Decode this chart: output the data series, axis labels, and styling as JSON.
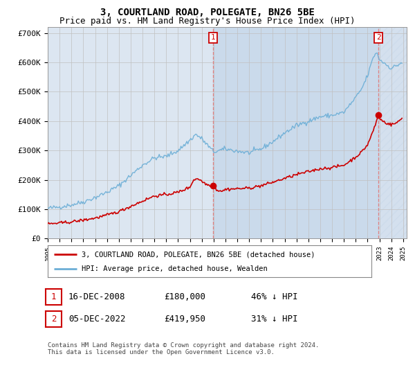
{
  "title": "3, COURTLAND ROAD, POLEGATE, BN26 5BE",
  "subtitle": "Price paid vs. HM Land Registry's House Price Index (HPI)",
  "ylim": [
    0,
    720000
  ],
  "yticks": [
    0,
    100000,
    200000,
    300000,
    400000,
    500000,
    600000,
    700000
  ],
  "ytick_labels": [
    "£0",
    "£100K",
    "£200K",
    "£300K",
    "£400K",
    "£500K",
    "£600K",
    "£700K"
  ],
  "xlim_left": 1995,
  "xlim_right": 2025.3,
  "purchase1_date": 2008.96,
  "purchase1_price": 180000,
  "purchase2_date": 2022.92,
  "purchase2_price": 419950,
  "legend1": "3, COURTLAND ROAD, POLEGATE, BN26 5BE (detached house)",
  "legend2": "HPI: Average price, detached house, Wealden",
  "annotation1_label": "1",
  "annotation2_label": "2",
  "note1_num": "1",
  "note1_date": "16-DEC-2008",
  "note1_price": "£180,000",
  "note1_pct": "46% ↓ HPI",
  "note2_num": "2",
  "note2_date": "05-DEC-2022",
  "note2_price": "£419,950",
  "note2_pct": "31% ↓ HPI",
  "footer": "Contains HM Land Registry data © Crown copyright and database right 2024.\nThis data is licensed under the Open Government Licence v3.0.",
  "red_color": "#cc0000",
  "blue_color": "#6baed6",
  "bg_color": "#dce6f1",
  "shade_color": "#c6d8ee",
  "grid_color": "#c0c0c0",
  "annotation_box_color": "#cc0000",
  "title_fontsize": 10,
  "subtitle_fontsize": 9,
  "axis_fontsize": 8,
  "legend_fontsize": 8,
  "note_fontsize": 9
}
